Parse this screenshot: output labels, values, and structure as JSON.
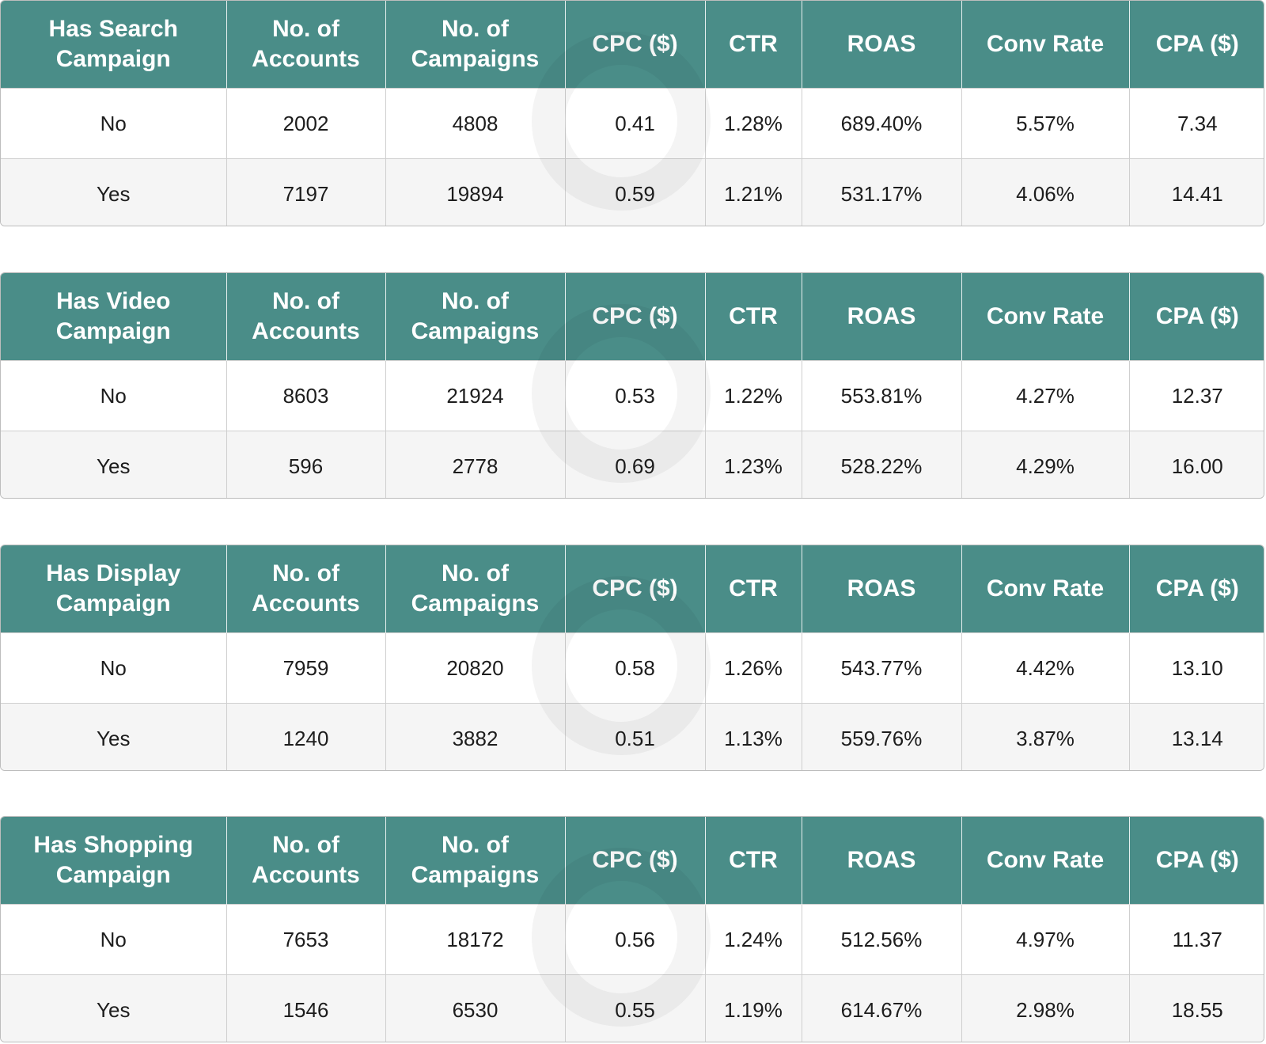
{
  "chart_data": [
    {
      "type": "table",
      "columns": [
        "Has Search Campaign",
        "No. of Accounts",
        "No. of Campaigns",
        "CPC ($)",
        "CTR",
        "ROAS",
        "Conv Rate",
        "CPA ($)"
      ],
      "rows": [
        [
          "No",
          "2002",
          "4808",
          "0.41",
          "1.28%",
          "689.40%",
          "5.57%",
          "7.34"
        ],
        [
          "Yes",
          "7197",
          "19894",
          "0.59",
          "1.21%",
          "531.17%",
          "4.06%",
          "14.41"
        ]
      ]
    },
    {
      "type": "table",
      "columns": [
        "Has Video Campaign",
        "No. of Accounts",
        "No. of Campaigns",
        "CPC ($)",
        "CTR",
        "ROAS",
        "Conv Rate",
        "CPA ($)"
      ],
      "rows": [
        [
          "No",
          "8603",
          "21924",
          "0.53",
          "1.22%",
          "553.81%",
          "4.27%",
          "12.37"
        ],
        [
          "Yes",
          "596",
          "2778",
          "0.69",
          "1.23%",
          "528.22%",
          "4.29%",
          "16.00"
        ]
      ]
    },
    {
      "type": "table",
      "columns": [
        "Has Display Campaign",
        "No. of Accounts",
        "No. of Campaigns",
        "CPC ($)",
        "CTR",
        "ROAS",
        "Conv Rate",
        "CPA ($)"
      ],
      "rows": [
        [
          "No",
          "7959",
          "20820",
          "0.58",
          "1.26%",
          "543.77%",
          "4.42%",
          "13.10"
        ],
        [
          "Yes",
          "1240",
          "3882",
          "0.51",
          "1.13%",
          "559.76%",
          "3.87%",
          "13.14"
        ]
      ]
    },
    {
      "type": "table",
      "columns": [
        "Has Shopping Campaign",
        "No. of Accounts",
        "No. of Campaigns",
        "CPC ($)",
        "CTR",
        "ROAS",
        "Conv Rate",
        "CPA ($)"
      ],
      "rows": [
        [
          "No",
          "7653",
          "18172",
          "0.56",
          "1.24%",
          "512.56%",
          "4.97%",
          "11.37"
        ],
        [
          "Yes",
          "1546",
          "6530",
          "0.55",
          "1.19%",
          "614.67%",
          "2.98%",
          "18.55"
        ]
      ]
    }
  ],
  "colors": {
    "header_bg": "#4a8d88",
    "header_text": "#ffffff",
    "row_alt_bg": "#f5f5f5"
  }
}
